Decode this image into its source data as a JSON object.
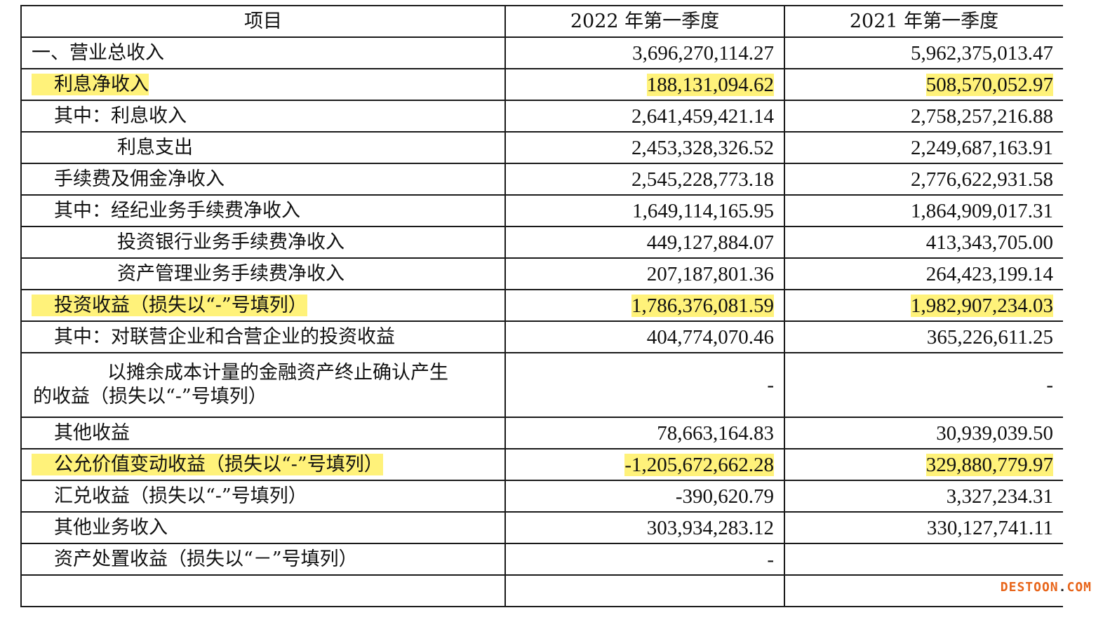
{
  "table": {
    "headers": [
      "项目",
      "2022 年第一季度",
      "2021 年第一季度"
    ],
    "rows": [
      {
        "label": "一、营业总收入",
        "v2022": "3,696,270,114.27",
        "v2021": "5,962,375,013.47"
      },
      {
        "label": "利息净收入",
        "v2022": "188,131,094.62",
        "v2021": "508,570,052.97"
      },
      {
        "label": "其中：利息收入",
        "v2022": "2,641,459,421.14",
        "v2021": "2,758,257,216.88"
      },
      {
        "label": "利息支出",
        "v2022": "2,453,328,326.52",
        "v2021": "2,249,687,163.91"
      },
      {
        "label": "手续费及佣金净收入",
        "v2022": "2,545,228,773.18",
        "v2021": "2,776,622,931.58"
      },
      {
        "label": "其中：经纪业务手续费净收入",
        "v2022": "1,649,114,165.95",
        "v2021": "1,864,909,017.31"
      },
      {
        "label": "投资银行业务手续费净收入",
        "v2022": "449,127,884.07",
        "v2021": "413,343,705.00"
      },
      {
        "label": "资产管理业务手续费净收入",
        "v2022": "207,187,801.36",
        "v2021": "264,423,199.14"
      },
      {
        "label": "投资收益（损失以“-”号填列）",
        "v2022": "1,786,376,081.59",
        "v2021": "1,982,907,234.03"
      },
      {
        "label": "其中：对联营企业和合营企业的投资收益",
        "v2022": "404,774,070.46",
        "v2021": "365,226,611.25"
      },
      {
        "label_line1": "以摊余成本计量的金融资产终止确认产生",
        "label_line2": "的收益（损失以“-”号填列）",
        "v2022": "-",
        "v2021": "-"
      },
      {
        "label": "其他收益",
        "v2022": "78,663,164.83",
        "v2021": "30,939,039.50"
      },
      {
        "label": "公允价值变动收益（损失以“-”号填列）",
        "v2022": "-1,205,672,662.28",
        "v2021": "329,880,779.97"
      },
      {
        "label": "汇兑收益（损失以“-”号填列）",
        "v2022": "-390,620.79",
        "v2021": "3,327,234.31"
      },
      {
        "label": "其他业务收入",
        "v2022": "303,934,283.12",
        "v2021": "330,127,741.11"
      },
      {
        "label": "资产处置收益（损失以“－”号填列）",
        "v2022": "-",
        "v2021": ""
      }
    ]
  },
  "watermark": {
    "brand": "DESTOON",
    "dot": ".",
    "suffix": "COM"
  },
  "colors": {
    "highlight": "#fff27a",
    "watermark": "#e8651a",
    "border": "#1a1a1a"
  }
}
